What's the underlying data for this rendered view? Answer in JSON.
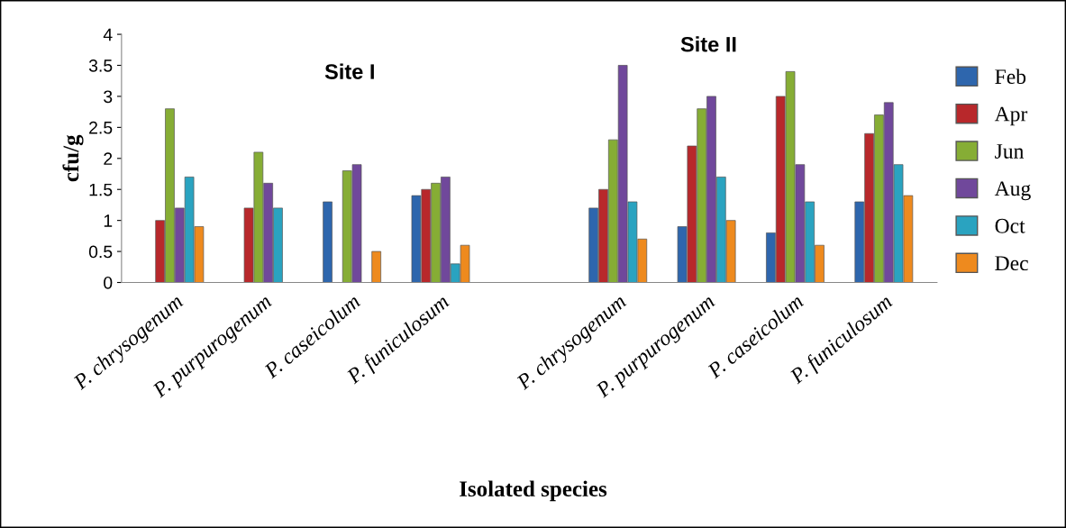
{
  "chart_data": {
    "type": "bar",
    "categories": [
      "P. chrysogenum",
      "P. purpurogenum",
      "P. caseicolum",
      "P. funiculosum",
      null,
      "P. chrysogenum",
      "P. purpurogenum",
      "P. caseicolum",
      "P. funiculosum"
    ],
    "series": [
      {
        "name": "Feb",
        "color": "#2e66ad",
        "values": [
          null,
          null,
          1.3,
          1.4,
          null,
          1.2,
          0.9,
          0.8,
          1.3
        ]
      },
      {
        "name": "Apr",
        "color": "#b8282b",
        "values": [
          1.0,
          1.2,
          null,
          1.5,
          null,
          1.5,
          2.2,
          3.0,
          2.4
        ]
      },
      {
        "name": "Jun",
        "color": "#86ad35",
        "values": [
          2.8,
          2.1,
          1.8,
          1.6,
          null,
          2.3,
          2.8,
          3.4,
          2.7
        ]
      },
      {
        "name": "Aug",
        "color": "#70489b",
        "values": [
          1.2,
          1.6,
          1.9,
          1.7,
          null,
          3.5,
          3.0,
          1.9,
          2.9
        ]
      },
      {
        "name": "Oct",
        "color": "#2aa3c0",
        "values": [
          1.7,
          1.2,
          null,
          0.3,
          null,
          1.3,
          1.7,
          1.3,
          1.9
        ]
      },
      {
        "name": "Dec",
        "color": "#ee8a1e",
        "values": [
          0.9,
          null,
          0.5,
          0.6,
          null,
          0.7,
          1.0,
          0.6,
          1.4
        ]
      }
    ],
    "ylim": [
      0,
      4
    ],
    "yticks": [
      0,
      0.5,
      1,
      1.5,
      2,
      2.5,
      3,
      3.5,
      4
    ],
    "xlabel": "Isolated species",
    "ylabel": "cfu/g",
    "annotations": [
      "Site I",
      "Site II"
    ],
    "grid": false,
    "legend": "right"
  }
}
